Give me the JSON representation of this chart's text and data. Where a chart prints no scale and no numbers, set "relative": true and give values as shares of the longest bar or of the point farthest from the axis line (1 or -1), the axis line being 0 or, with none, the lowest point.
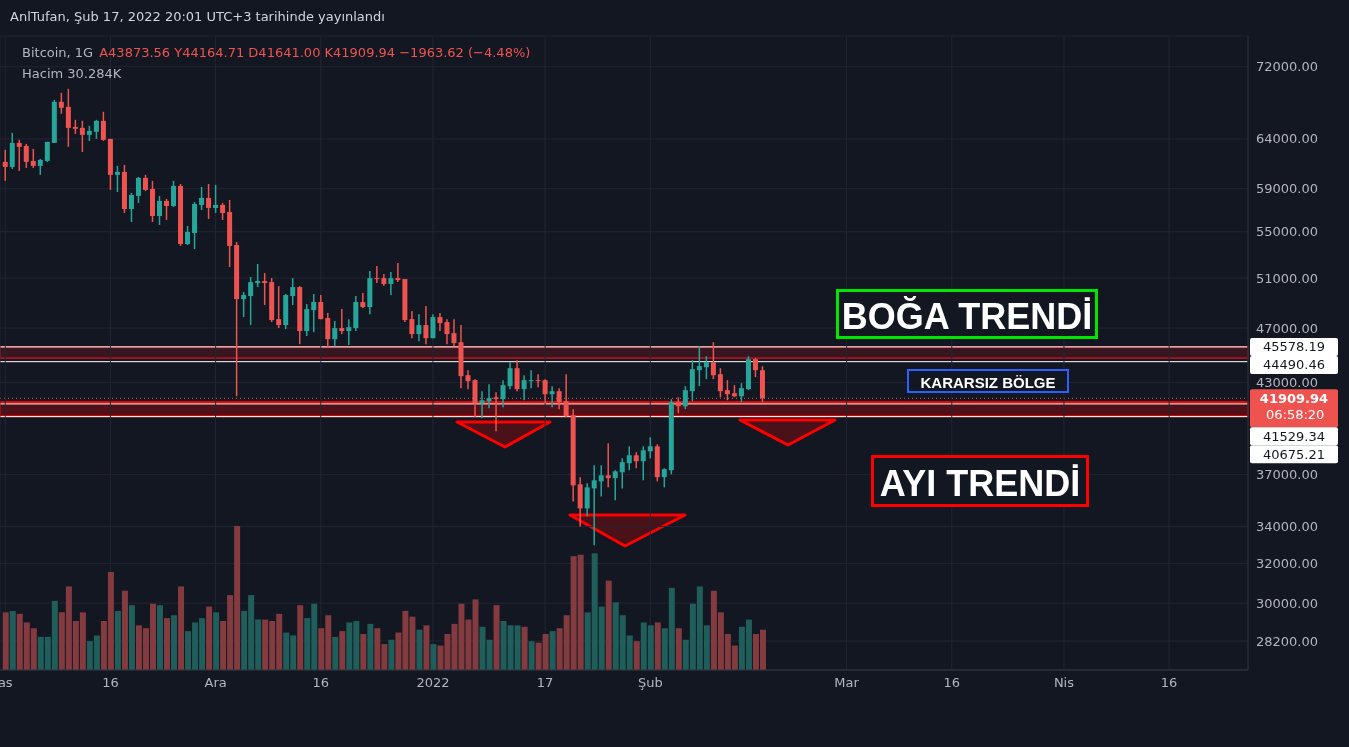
{
  "chart_data": [
    {
      "type": "candlestick",
      "title": "Bitcoin, 1G",
      "subtitle": "A43873.56 Y44164.71 D41641.00 K41909.94 −1963.62 (−4.48%)",
      "x": [
        "2021-11-01",
        "2021-11-02",
        "2021-11-03",
        "2021-11-04",
        "2021-11-05",
        "2021-11-06",
        "2021-11-07",
        "2021-11-08",
        "2021-11-09",
        "2021-11-10",
        "2021-11-11",
        "2021-11-12",
        "2021-11-13",
        "2021-11-14",
        "2021-11-15",
        "2021-11-16",
        "2021-11-17",
        "2021-11-18",
        "2021-11-19",
        "2021-11-20",
        "2021-11-21",
        "2021-11-22",
        "2021-11-23",
        "2021-11-24",
        "2021-11-25",
        "2021-11-26",
        "2021-11-27",
        "2021-11-28",
        "2021-11-29",
        "2021-11-30",
        "2021-12-01",
        "2021-12-02",
        "2021-12-03",
        "2021-12-04",
        "2021-12-05",
        "2021-12-06",
        "2021-12-07",
        "2021-12-08",
        "2021-12-09",
        "2021-12-10",
        "2021-12-11",
        "2021-12-12",
        "2021-12-13",
        "2021-12-14",
        "2021-12-15",
        "2021-12-16",
        "2021-12-17",
        "2021-12-18",
        "2021-12-19",
        "2021-12-20",
        "2021-12-21",
        "2021-12-22",
        "2021-12-23",
        "2021-12-24",
        "2021-12-25",
        "2021-12-26",
        "2021-12-27",
        "2021-12-28",
        "2021-12-29",
        "2021-12-30",
        "2021-12-31",
        "2022-01-01",
        "2022-01-02",
        "2022-01-03",
        "2022-01-04",
        "2022-01-05",
        "2022-01-06",
        "2022-01-07",
        "2022-01-08",
        "2022-01-09",
        "2022-01-10",
        "2022-01-11",
        "2022-01-12",
        "2022-01-13",
        "2022-01-14",
        "2022-01-15",
        "2022-01-16",
        "2022-01-17",
        "2022-01-18",
        "2022-01-19",
        "2022-01-20",
        "2022-01-21",
        "2022-01-22",
        "2022-01-23",
        "2022-01-24",
        "2022-01-25",
        "2022-01-26",
        "2022-01-27",
        "2022-01-28",
        "2022-01-29",
        "2022-01-30",
        "2022-01-31",
        "2022-02-01",
        "2022-02-02",
        "2022-02-03",
        "2022-02-04",
        "2022-02-05",
        "2022-02-06",
        "2022-02-07",
        "2022-02-08",
        "2022-02-09",
        "2022-02-10",
        "2022-02-11",
        "2022-02-12",
        "2022-02-13",
        "2022-02-14",
        "2022-02-15",
        "2022-02-16",
        "2022-02-17"
      ],
      "ohlc": [
        [
          61640,
          62860,
          59760,
          61140
        ],
        [
          61140,
          64630,
          60940,
          63580
        ],
        [
          63580,
          63900,
          60740,
          63170
        ],
        [
          63270,
          63480,
          61040,
          61640
        ],
        [
          61740,
          62960,
          61040,
          61240
        ],
        [
          61240,
          61940,
          60350,
          61840
        ],
        [
          61740,
          63690,
          61640,
          63690
        ],
        [
          63580,
          68210,
          63580,
          67990
        ],
        [
          67990,
          69000,
          66670,
          67330
        ],
        [
          67440,
          69450,
          63170,
          65160
        ],
        [
          65270,
          66020,
          64520,
          65060
        ],
        [
          65160,
          65910,
          62650,
          64420
        ],
        [
          64420,
          65380,
          63790,
          64840
        ],
        [
          64740,
          66020,
          64000,
          65910
        ],
        [
          65910,
          66890,
          63790,
          63900
        ],
        [
          64000,
          64000,
          58890,
          60350
        ],
        [
          60350,
          61240,
          58690,
          60640
        ],
        [
          60640,
          61340,
          56710,
          57080
        ],
        [
          57080,
          58600,
          55880,
          58400
        ],
        [
          58310,
          60150,
          57650,
          60050
        ],
        [
          60050,
          60350,
          58790,
          58890
        ],
        [
          58980,
          59760,
          55880,
          56430
        ],
        [
          56430,
          58310,
          55610,
          57840
        ],
        [
          57840,
          58020,
          56070,
          57360
        ],
        [
          57360,
          59760,
          57270,
          59270
        ],
        [
          59270,
          59460,
          53740,
          53910
        ],
        [
          53910,
          55520,
          53820,
          54980
        ],
        [
          54890,
          57740,
          53470,
          57550
        ],
        [
          57460,
          59170,
          56990,
          58120
        ],
        [
          58120,
          59460,
          56160,
          57180
        ],
        [
          57180,
          59370,
          56710,
          57460
        ],
        [
          57460,
          57650,
          56070,
          56710
        ],
        [
          56800,
          57930,
          51920,
          53740
        ],
        [
          53820,
          54090,
          42050,
          49280
        ],
        [
          49280,
          49840,
          47850,
          49600
        ],
        [
          49520,
          51080,
          47230,
          50660
        ],
        [
          50580,
          52180,
          50250,
          50750
        ],
        [
          50750,
          51410,
          48800,
          50580
        ],
        [
          50660,
          50990,
          47460,
          47620
        ],
        [
          47690,
          50330,
          47000,
          47230
        ],
        [
          47230,
          49680,
          46920,
          49600
        ],
        [
          49520,
          50990,
          48800,
          50250
        ],
        [
          50250,
          50330,
          45780,
          46770
        ],
        [
          46770,
          48880,
          46390,
          48480
        ],
        [
          48400,
          49680,
          46690,
          49040
        ],
        [
          49040,
          49600,
          47690,
          47690
        ],
        [
          47770,
          48170,
          45560,
          46160
        ],
        [
          46160,
          47540,
          45630,
          47000
        ],
        [
          47000,
          48480,
          46540,
          46770
        ],
        [
          46770,
          47690,
          45710,
          47070
        ],
        [
          47000,
          49520,
          46770,
          49040
        ],
        [
          49040,
          49760,
          48560,
          48640
        ],
        [
          48640,
          51580,
          48080,
          50990
        ],
        [
          50990,
          52010,
          50580,
          50910
        ],
        [
          50990,
          51330,
          50330,
          50500
        ],
        [
          50500,
          51500,
          49600,
          50990
        ],
        [
          50990,
          52260,
          50660,
          50830
        ],
        [
          50910,
          50910,
          47460,
          47620
        ],
        [
          47690,
          48320,
          46230,
          46540
        ],
        [
          46540,
          48080,
          46000,
          47230
        ],
        [
          47230,
          48720,
          45780,
          46230
        ],
        [
          46230,
          48080,
          46230,
          47850
        ],
        [
          47850,
          48170,
          46770,
          47380
        ],
        [
          47460,
          47690,
          45780,
          46540
        ],
        [
          46610,
          47690,
          45630,
          45860
        ],
        [
          45930,
          47230,
          42610,
          43450
        ],
        [
          43520,
          43880,
          42540,
          43100
        ],
        [
          43170,
          43240,
          40630,
          41570
        ],
        [
          41570,
          42400,
          40570,
          41780
        ],
        [
          41710,
          42890,
          41240,
          41920
        ],
        [
          41980,
          42330,
          39720,
          41850
        ],
        [
          41850,
          43170,
          41300,
          42820
        ],
        [
          42750,
          44450,
          42540,
          44020
        ],
        [
          44020,
          44600,
          42400,
          42540
        ],
        [
          42540,
          43520,
          41780,
          43170
        ],
        [
          43100,
          43880,
          42610,
          43170
        ],
        [
          43170,
          43590,
          42680,
          43100
        ],
        [
          43170,
          43240,
          41570,
          42190
        ],
        [
          42190,
          42750,
          41300,
          42400
        ],
        [
          42400,
          42610,
          41170,
          41650
        ],
        [
          41710,
          43590,
          40630,
          40700
        ],
        [
          40770,
          41170,
          35420,
          36360
        ],
        [
          36420,
          36850,
          34000,
          35020
        ],
        [
          35020,
          36480,
          34570,
          36240
        ],
        [
          36180,
          37570,
          32970,
          36660
        ],
        [
          36600,
          37570,
          35710,
          36960
        ],
        [
          36960,
          38950,
          36240,
          36790
        ],
        [
          36790,
          37270,
          35480,
          37200
        ],
        [
          37140,
          38000,
          36180,
          37760
        ],
        [
          37700,
          38750,
          37270,
          38190
        ],
        [
          38190,
          38380,
          37390,
          37820
        ],
        [
          37820,
          38750,
          36660,
          38500
        ],
        [
          38440,
          39330,
          38000,
          38750
        ],
        [
          38750,
          38880,
          36600,
          36850
        ],
        [
          36850,
          37390,
          36240,
          37330
        ],
        [
          37270,
          41850,
          37020,
          41650
        ],
        [
          41650,
          41980,
          40900,
          41370
        ],
        [
          41370,
          42750,
          41170,
          42470
        ],
        [
          42400,
          44600,
          41710,
          43950
        ],
        [
          43880,
          45630,
          42750,
          44170
        ],
        [
          44090,
          44890,
          43240,
          44450
        ],
        [
          44450,
          45930,
          43240,
          43520
        ],
        [
          43590,
          44020,
          41980,
          42400
        ],
        [
          42470,
          43170,
          41780,
          42190
        ],
        [
          42260,
          42820,
          41980,
          42050
        ],
        [
          42050,
          42960,
          41650,
          42610
        ],
        [
          42540,
          44890,
          42470,
          44670
        ],
        [
          44670,
          44750,
          43380,
          43880
        ],
        [
          43873.56,
          44164.71,
          41641.0,
          41909.94
        ]
      ],
      "log": true,
      "ylim": [
        26900,
        75700
      ],
      "yticks": [
        {
          "value": 28200,
          "label": "28200.00"
        },
        {
          "value": 30000,
          "label": "30000.00"
        },
        {
          "value": 32000,
          "label": "32000.00"
        },
        {
          "value": 34000,
          "label": "34000.00"
        },
        {
          "value": 37000,
          "label": "37000.00"
        },
        {
          "value": 43000,
          "label": "43000.00"
        },
        {
          "value": 47000,
          "label": "47000.00"
        },
        {
          "value": 51000,
          "label": "51000.00"
        },
        {
          "value": 55000,
          "label": "55000.00"
        },
        {
          "value": 59000,
          "label": "59000.00"
        },
        {
          "value": 64000,
          "label": "64000.00"
        },
        {
          "value": 72000,
          "label": "72000.00"
        }
      ],
      "xlim": [
        "2021-10-31T06:00",
        "2022-04-27T06:00"
      ],
      "xticks": [
        {
          "value": "2021-11-01",
          "label": "as"
        },
        {
          "value": "2021-11-16",
          "label": "16"
        },
        {
          "value": "2021-12-01",
          "label": "Ara"
        },
        {
          "value": "2021-12-16",
          "label": "16"
        },
        {
          "value": "2022-01-01",
          "label": "2022"
        },
        {
          "value": "2022-01-17",
          "label": "17"
        },
        {
          "value": "2022-02-01",
          "label": "Şub"
        },
        {
          "value": "2022-03-01",
          "label": "Mar"
        },
        {
          "value": "2022-03-16",
          "label": "16"
        },
        {
          "value": "2022-04-01",
          "label": "Nis"
        },
        {
          "value": "2022-04-16",
          "label": "16"
        }
      ],
      "grid": true,
      "ref_lines": [
        {
          "axis": "y",
          "value": 45578.19,
          "label": "45578.19",
          "color": "#ffffff"
        },
        {
          "axis": "y",
          "value": 44490.46,
          "label": "44490.46",
          "color": "#ffffff"
        },
        {
          "axis": "y",
          "value": 41909.94,
          "label": "41909.94",
          "color": "#ef5350",
          "line_style": "dotted"
        },
        {
          "axis": "y",
          "value": 41529.34,
          "label": "41529.34",
          "color": "#ffffff"
        },
        {
          "axis": "y",
          "value": 40675.21,
          "label": "40675.21",
          "color": "#ffffff"
        }
      ],
      "bands": [
        {
          "axis": "y",
          "from": 44750,
          "to": 45560,
          "color": "#a0161e"
        },
        {
          "axis": "y",
          "from": 40700,
          "to": 41650,
          "color": "#ff0000"
        }
      ],
      "annotations": [
        "AnlTufan, Şub 17, 2022 20:01 UTC+3 tarihinde yayınlandı",
        "Hacim 30.284K",
        "06:58:20",
        "BOĞA TRENDİ",
        "KARARSIZ BÖLGE",
        "AYI TRENDİ"
      ]
    },
    {
      "type": "bar",
      "relative": true,
      "tick_labels": false,
      "x": [
        "2021-11-01",
        "2021-11-02",
        "2021-11-03",
        "2021-11-04",
        "2021-11-05",
        "2021-11-06",
        "2021-11-07",
        "2021-11-08",
        "2021-11-09",
        "2021-11-10",
        "2021-11-11",
        "2021-11-12",
        "2021-11-13",
        "2021-11-14",
        "2021-11-15",
        "2021-11-16",
        "2021-11-17",
        "2021-11-18",
        "2021-11-19",
        "2021-11-20",
        "2021-11-21",
        "2021-11-22",
        "2021-11-23",
        "2021-11-24",
        "2021-11-25",
        "2021-11-26",
        "2021-11-27",
        "2021-11-28",
        "2021-11-29",
        "2021-11-30",
        "2021-12-01",
        "2021-12-02",
        "2021-12-03",
        "2021-12-04",
        "2021-12-05",
        "2021-12-06",
        "2021-12-07",
        "2021-12-08",
        "2021-12-09",
        "2021-12-10",
        "2021-12-11",
        "2021-12-12",
        "2021-12-13",
        "2021-12-14",
        "2021-12-15",
        "2021-12-16",
        "2021-12-17",
        "2021-12-18",
        "2021-12-19",
        "2021-12-20",
        "2021-12-21",
        "2021-12-22",
        "2021-12-23",
        "2021-12-24",
        "2021-12-25",
        "2021-12-26",
        "2021-12-27",
        "2021-12-28",
        "2021-12-29",
        "2021-12-30",
        "2021-12-31",
        "2022-01-01",
        "2022-01-02",
        "2022-01-03",
        "2022-01-04",
        "2022-01-05",
        "2022-01-06",
        "2022-01-07",
        "2022-01-08",
        "2022-01-09",
        "2022-01-10",
        "2022-01-11",
        "2022-01-12",
        "2022-01-13",
        "2022-01-14",
        "2022-01-15",
        "2022-01-16",
        "2022-01-17",
        "2022-01-18",
        "2022-01-19",
        "2022-01-20",
        "2022-01-21",
        "2022-01-22",
        "2022-01-23",
        "2022-01-24",
        "2022-01-25",
        "2022-01-26",
        "2022-01-27",
        "2022-01-28",
        "2022-01-29",
        "2022-01-30",
        "2022-01-31",
        "2022-02-01",
        "2022-02-02",
        "2022-02-03",
        "2022-02-04",
        "2022-02-05",
        "2022-02-06",
        "2022-02-07",
        "2022-02-08",
        "2022-02-09",
        "2022-02-10",
        "2022-02-11",
        "2022-02-12",
        "2022-02-13",
        "2022-02-14",
        "2022-02-15",
        "2022-02-16",
        "2022-02-17"
      ],
      "xlim": [
        "2021-10-31T06:00",
        "2022-04-27T06:00"
      ],
      "values": [
        0.4,
        0.41,
        0.39,
        0.33,
        0.29,
        0.23,
        0.23,
        0.48,
        0.4,
        0.58,
        0.34,
        0.4,
        0.2,
        0.24,
        0.34,
        0.68,
        0.41,
        0.55,
        0.45,
        0.31,
        0.29,
        0.46,
        0.45,
        0.36,
        0.38,
        0.58,
        0.27,
        0.33,
        0.36,
        0.44,
        0.4,
        0.34,
        0.52,
        1,
        0.41,
        0.52,
        0.35,
        0.35,
        0.34,
        0.39,
        0.26,
        0.24,
        0.45,
        0.36,
        0.46,
        0.29,
        0.38,
        0.23,
        0.27,
        0.33,
        0.34,
        0.25,
        0.32,
        0.29,
        0.18,
        0.21,
        0.26,
        0.41,
        0.37,
        0.28,
        0.31,
        0.18,
        0.17,
        0.25,
        0.32,
        0.46,
        0.35,
        0.49,
        0.3,
        0.21,
        0.45,
        0.34,
        0.31,
        0.31,
        0.3,
        0.2,
        0.19,
        0.25,
        0.27,
        0.29,
        0.38,
        0.79,
        0.8,
        0.4,
        0.81,
        0.44,
        0.62,
        0.47,
        0.38,
        0.24,
        0.2,
        0.33,
        0.31,
        0.33,
        0.29,
        0.57,
        0.29,
        0.21,
        0.46,
        0.58,
        0.31,
        0.55,
        0.4,
        0.25,
        0.17,
        0.3,
        0.35,
        0.25,
        0.28
      ],
      "colors": [
        "#843b3f",
        "#1f5e5a",
        "#843b3f",
        "#843b3f",
        "#843b3f",
        "#1f5e5a",
        "#1f5e5a",
        "#1f5e5a",
        "#843b3f",
        "#843b3f",
        "#843b3f",
        "#843b3f",
        "#1f5e5a",
        "#1f5e5a",
        "#843b3f",
        "#843b3f",
        "#1f5e5a",
        "#843b3f",
        "#1f5e5a",
        "#843b3f",
        "#843b3f",
        "#843b3f",
        "#1f5e5a",
        "#843b3f",
        "#1f5e5a",
        "#843b3f",
        "#1f5e5a",
        "#1f5e5a",
        "#1f5e5a",
        "#843b3f",
        "#1f5e5a",
        "#843b3f",
        "#843b3f",
        "#843b3f",
        "#1f5e5a",
        "#1f5e5a",
        "#1f5e5a",
        "#843b3f",
        "#843b3f",
        "#843b3f",
        "#1f5e5a",
        "#1f5e5a",
        "#843b3f",
        "#1f5e5a",
        "#1f5e5a",
        "#843b3f",
        "#843b3f",
        "#1f5e5a",
        "#843b3f",
        "#1f5e5a",
        "#1f5e5a",
        "#843b3f",
        "#1f5e5a",
        "#843b3f",
        "#843b3f",
        "#1f5e5a",
        "#843b3f",
        "#843b3f",
        "#843b3f",
        "#1f5e5a",
        "#843b3f",
        "#1f5e5a",
        "#843b3f",
        "#843b3f",
        "#843b3f",
        "#843b3f",
        "#843b3f",
        "#843b3f",
        "#1f5e5a",
        "#1f5e5a",
        "#843b3f",
        "#1f5e5a",
        "#1f5e5a",
        "#1f5e5a",
        "#843b3f",
        "#1f5e5a",
        "#843b3f",
        "#843b3f",
        "#1f5e5a",
        "#843b3f",
        "#843b3f",
        "#843b3f",
        "#843b3f",
        "#1f5e5a",
        "#1f5e5a",
        "#1f5e5a",
        "#843b3f",
        "#1f5e5a",
        "#1f5e5a",
        "#1f5e5a",
        "#843b3f",
        "#1f5e5a",
        "#1f5e5a",
        "#843b3f",
        "#1f5e5a",
        "#1f5e5a",
        "#843b3f",
        "#1f5e5a",
        "#1f5e5a",
        "#1f5e5a",
        "#1f5e5a",
        "#843b3f",
        "#843b3f",
        "#843b3f",
        "#843b3f",
        "#1f5e5a",
        "#1f5e5a",
        "#843b3f",
        "#843b3f"
      ]
    }
  ]
}
